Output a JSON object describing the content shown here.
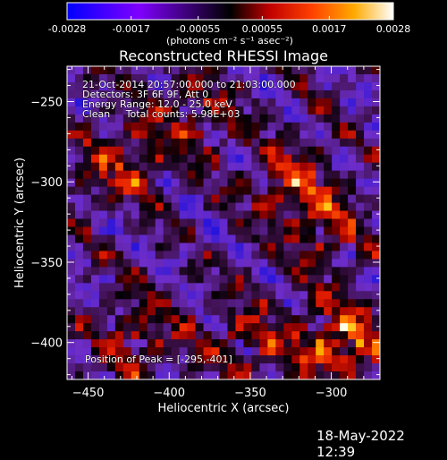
{
  "colorbar": {
    "ticks": [
      "-0.0028",
      "-0.0017",
      "-0.00055",
      "0.00055",
      "0.0017",
      "0.0028"
    ],
    "tick_values": [
      -0.0028,
      -0.0017,
      -0.00055,
      0.00055,
      0.0017,
      0.0028
    ],
    "range": [
      -0.0028,
      0.0028
    ],
    "unit_label": "(photons cm⁻² s⁻¹ asec⁻²)",
    "colors": [
      "#0000ff",
      "#8000ff",
      "#000000",
      "#c00000",
      "#ff4000",
      "#ffaa00",
      "#ffffff"
    ]
  },
  "chart_data": {
    "type": "heatmap",
    "title": "Reconstructed RHESSI Image",
    "xlabel": "Heliocentric X (arcsec)",
    "ylabel": "Heliocentric Y (arcsec)",
    "xlim": [
      -463,
      -270
    ],
    "ylim": [
      -423,
      -228
    ],
    "x_ticks": [
      -450,
      -400,
      -350,
      -300
    ],
    "y_ticks": [
      -250,
      -300,
      -350,
      -400
    ],
    "x_tick_labels": [
      "−450",
      "−400",
      "−350",
      "−300"
    ],
    "y_tick_labels": [
      "−250",
      "−300",
      "−350",
      "−400"
    ],
    "peak": {
      "x": -295,
      "y": -401
    },
    "bright_regions": [
      {
        "x": -295,
        "y": -401,
        "level": 1.0
      },
      {
        "x": -325,
        "y": -300,
        "level": 0.65
      },
      {
        "x": -430,
        "y": -290,
        "level": 0.6
      },
      {
        "x": -385,
        "y": -260,
        "level": 0.5
      },
      {
        "x": -420,
        "y": -395,
        "level": 0.55
      },
      {
        "x": -350,
        "y": -400,
        "level": 0.55
      },
      {
        "x": -300,
        "y": -330,
        "level": 0.5
      }
    ]
  },
  "annotations": {
    "time_range": "21-Oct-2014 20:57:00.000 to 21:03:00.000",
    "detectors": "Detectors: 3F 6F 9F, Att 0",
    "energy": "Energy Range: 12.0 - 25.0 keV",
    "method": "Clean     Total counts: 5.98E+03",
    "peak_position": "Position of Peak = [-295,-401]"
  },
  "timestamp": "18-May-2022 12:39"
}
